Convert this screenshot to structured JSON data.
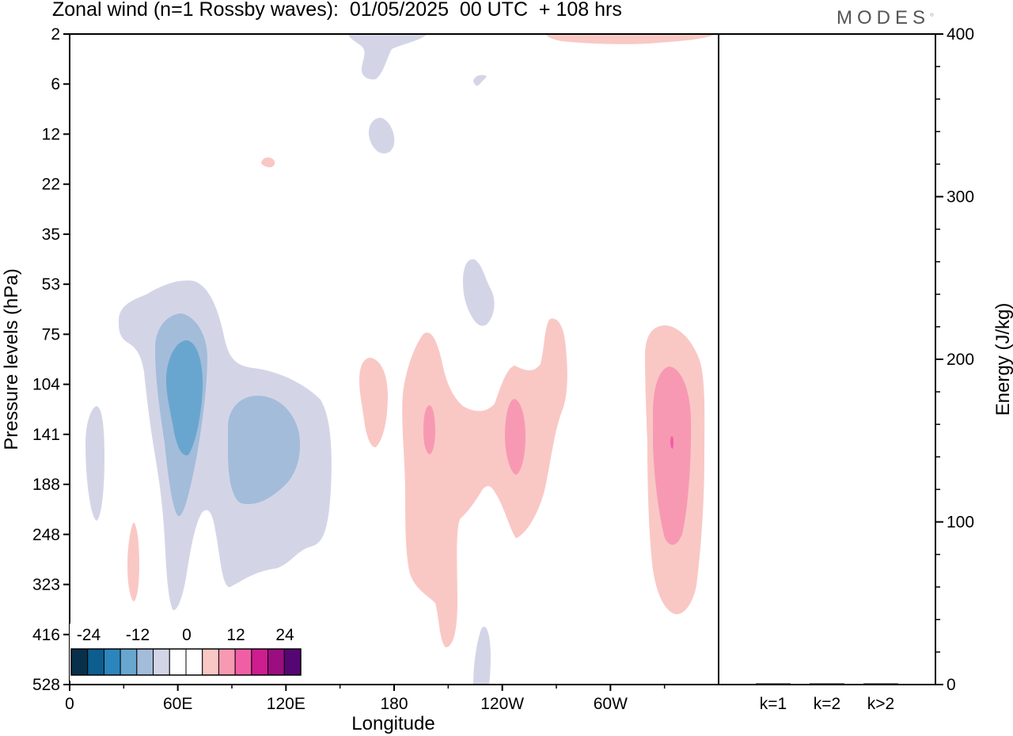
{
  "header": {
    "title": "Zonal wind (n=1 Rossby waves):  01/05/2025  00 UTC  + 108 hrs",
    "brand": "MODES"
  },
  "chart_data": [
    {
      "type": "heatmap",
      "title": "Zonal wind (n=1 Rossby waves):  01/05/2025  00 UTC  + 108 hrs",
      "xlabel": "Longitude",
      "ylabel": "Pressure levels (hPa)",
      "x_ticks": [
        "0",
        "60E",
        "120E",
        "180",
        "120W",
        "60W"
      ],
      "x_tick_lon": [
        0,
        60,
        120,
        180,
        240,
        300
      ],
      "xlim": [
        0,
        360
      ],
      "y_ticks": [
        "2",
        "6",
        "12",
        "22",
        "35",
        "53",
        "75",
        "104",
        "141",
        "188",
        "248",
        "323",
        "416",
        "528"
      ],
      "y_axis": "pressure levels (equally spaced rows)",
      "colorbar": {
        "tick_labels": [
          "-24",
          "-12",
          "0",
          "12",
          "24"
        ],
        "colors": [
          "#08304a",
          "#0d5e8e",
          "#2c85bc",
          "#69a6cf",
          "#a3bcda",
          "#d3d5e7",
          "#ffffff",
          "#ffffff",
          "#f9c8c5",
          "#f899b3",
          "#f05fa5",
          "#cd1d8f",
          "#9b0e80",
          "#560673"
        ]
      },
      "features": [
        {
          "sign": "negative",
          "min_level": "-12",
          "lon_center": 60,
          "level_center": "104"
        },
        {
          "sign": "negative",
          "min_level": "-9",
          "lon_center": 105,
          "level_center": "141"
        },
        {
          "sign": "positive",
          "max_level": "9",
          "lon_center": 240,
          "level_center": "141"
        },
        {
          "sign": "positive",
          "max_level": "9",
          "lon_center": 320,
          "level_center": "141"
        }
      ]
    },
    {
      "type": "bar",
      "ylabel": "Energy (J/kg)",
      "categories": [
        "k=1",
        "k=2",
        "k>2"
      ],
      "values": [
        0.5,
        0.2,
        0.2
      ],
      "ylim": [
        0,
        400
      ],
      "y_ticks": [
        "0",
        "100",
        "200",
        "300",
        "400"
      ]
    }
  ]
}
